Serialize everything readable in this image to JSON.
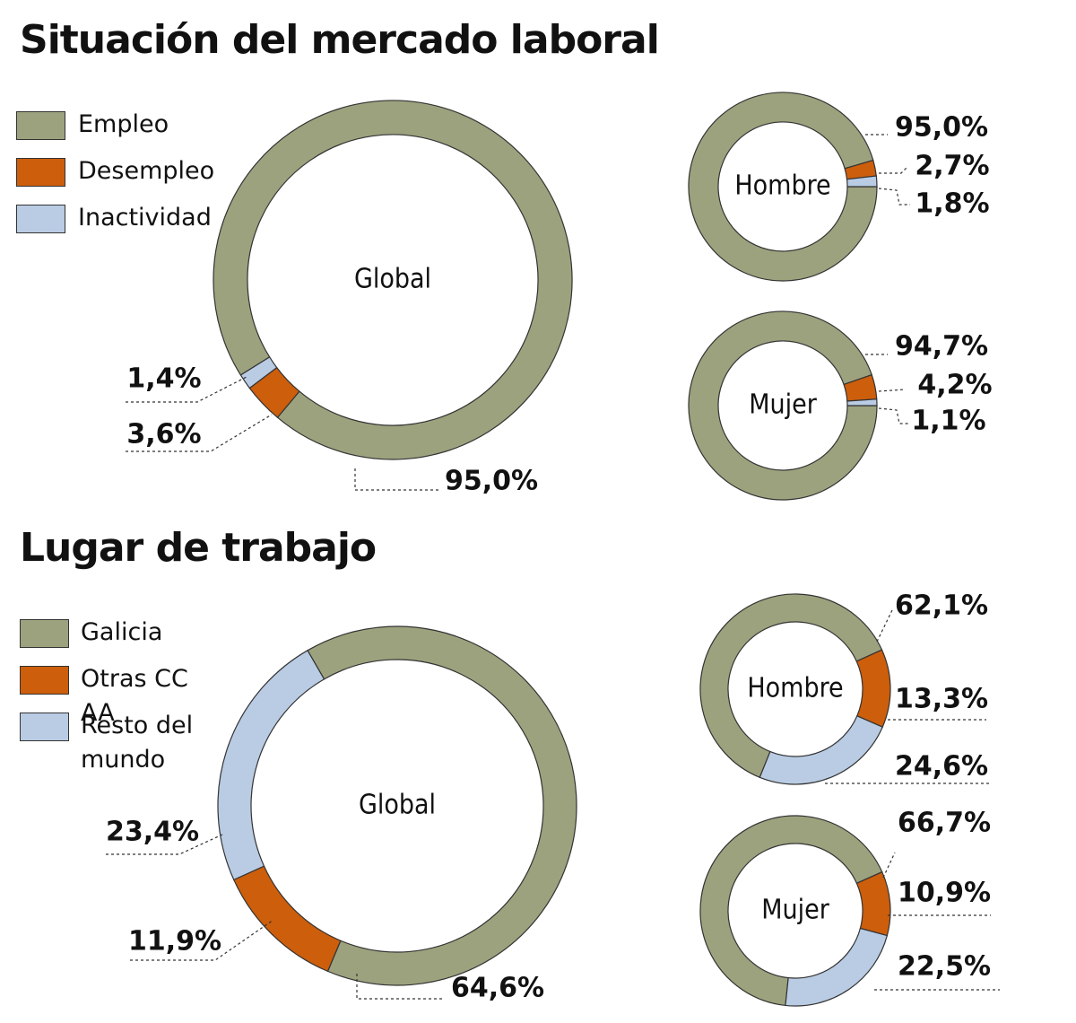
{
  "chart_data": [
    {
      "type": "donut",
      "title": "Situación del mercado laboral",
      "label": "Global",
      "categories": [
        "Empleo",
        "Desempleo",
        "Inactividad"
      ],
      "colors": [
        "#9da27e",
        "#cc5e0c",
        "#b9cce4"
      ],
      "values": [
        95.0,
        3.6,
        1.4
      ],
      "value_labels": [
        "95,0%",
        "3,6%",
        "1,4%"
      ]
    },
    {
      "type": "donut",
      "label": "Hombre",
      "values": [
        95.0,
        2.7,
        1.8
      ],
      "value_labels": [
        "95,0%",
        "2,7%",
        "1,8%"
      ]
    },
    {
      "type": "donut",
      "label": "Mujer",
      "values": [
        94.7,
        4.2,
        1.1
      ],
      "value_labels": [
        "94,7%",
        "4,2%",
        "1,1%"
      ]
    },
    {
      "type": "donut",
      "title": "Lugar de trabajo",
      "label": "Global",
      "categories": [
        "Galicia",
        "Otras CC AA",
        "Resto del mundo"
      ],
      "colors": [
        "#9da27e",
        "#cc5e0c",
        "#b9cce4"
      ],
      "values": [
        64.6,
        11.9,
        23.4
      ],
      "value_labels": [
        "64,6%",
        "11,9%",
        "23,4%"
      ]
    },
    {
      "type": "donut",
      "label": "Hombre",
      "values": [
        62.1,
        13.3,
        24.6
      ],
      "value_labels": [
        "62,1%",
        "13,3%",
        "24,6%"
      ]
    },
    {
      "type": "donut",
      "label": "Mujer",
      "values": [
        66.7,
        10.9,
        22.5
      ],
      "value_labels": [
        "66,7%",
        "10,9%",
        "22,5%"
      ]
    }
  ]
}
